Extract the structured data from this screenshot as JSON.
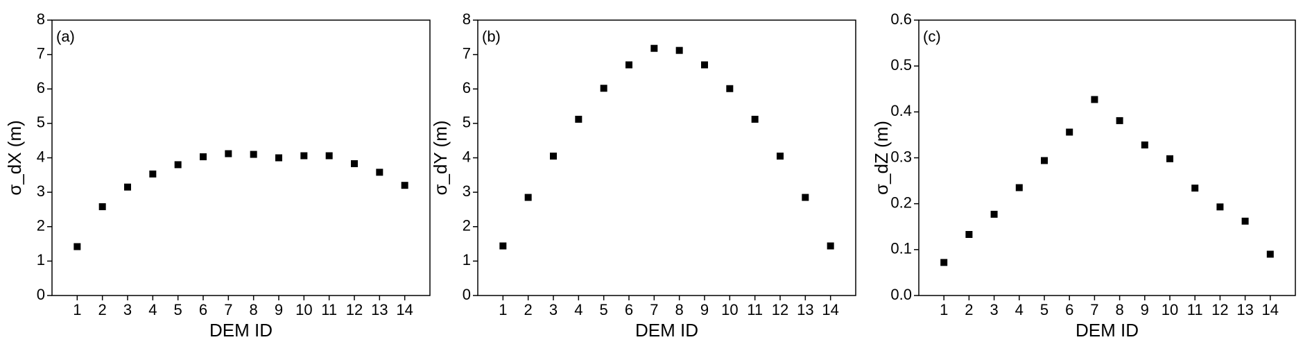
{
  "chart_data": [
    {
      "type": "scatter",
      "annotation": "(a)",
      "xlabel": "DEM ID",
      "ylabel": "σ_dX (m)",
      "color": "#000000",
      "x": [
        1,
        2,
        3,
        4,
        5,
        6,
        7,
        8,
        9,
        10,
        11,
        12,
        13,
        14
      ],
      "values": [
        1.42,
        2.58,
        3.15,
        3.53,
        3.8,
        4.03,
        4.12,
        4.1,
        4.0,
        4.06,
        4.06,
        3.83,
        3.58,
        3.2
      ],
      "xlim": [
        0,
        15
      ],
      "xticks": [
        1,
        2,
        3,
        4,
        5,
        6,
        7,
        8,
        9,
        10,
        11,
        12,
        13,
        14
      ],
      "ylim": [
        0,
        8
      ],
      "yticks": [
        0,
        1,
        2,
        3,
        4,
        5,
        6,
        7,
        8
      ]
    },
    {
      "type": "scatter",
      "annotation": "(b)",
      "xlabel": "DEM ID",
      "ylabel": "σ_dY (m)",
      "color": "#000000",
      "x": [
        1,
        2,
        3,
        4,
        5,
        6,
        7,
        8,
        9,
        10,
        11,
        12,
        13,
        14
      ],
      "values": [
        1.44,
        2.85,
        4.05,
        5.12,
        6.02,
        6.7,
        7.18,
        7.12,
        6.7,
        6.01,
        5.12,
        4.05,
        2.85,
        1.44
      ],
      "xlim": [
        0,
        15
      ],
      "xticks": [
        1,
        2,
        3,
        4,
        5,
        6,
        7,
        8,
        9,
        10,
        11,
        12,
        13,
        14
      ],
      "ylim": [
        0,
        8
      ],
      "yticks": [
        0,
        1,
        2,
        3,
        4,
        5,
        6,
        7,
        8
      ]
    },
    {
      "type": "scatter",
      "annotation": "(c)",
      "xlabel": "DEM ID",
      "ylabel": "σ_dZ (m)",
      "color": "#000000",
      "x": [
        1,
        2,
        3,
        4,
        5,
        6,
        7,
        8,
        9,
        10,
        11,
        12,
        13,
        14
      ],
      "values": [
        0.072,
        0.133,
        0.177,
        0.235,
        0.294,
        0.356,
        0.427,
        0.381,
        0.328,
        0.298,
        0.234,
        0.193,
        0.162,
        0.09
      ],
      "xlim": [
        0,
        15
      ],
      "xticks": [
        1,
        2,
        3,
        4,
        5,
        6,
        7,
        8,
        9,
        10,
        11,
        12,
        13,
        14
      ],
      "ylim": [
        0,
        0.6
      ],
      "yticks": [
        {
          "value": 0,
          "label": "0.0"
        },
        0.1,
        0.2,
        0.3,
        0.4,
        0.5,
        0.6
      ]
    }
  ]
}
